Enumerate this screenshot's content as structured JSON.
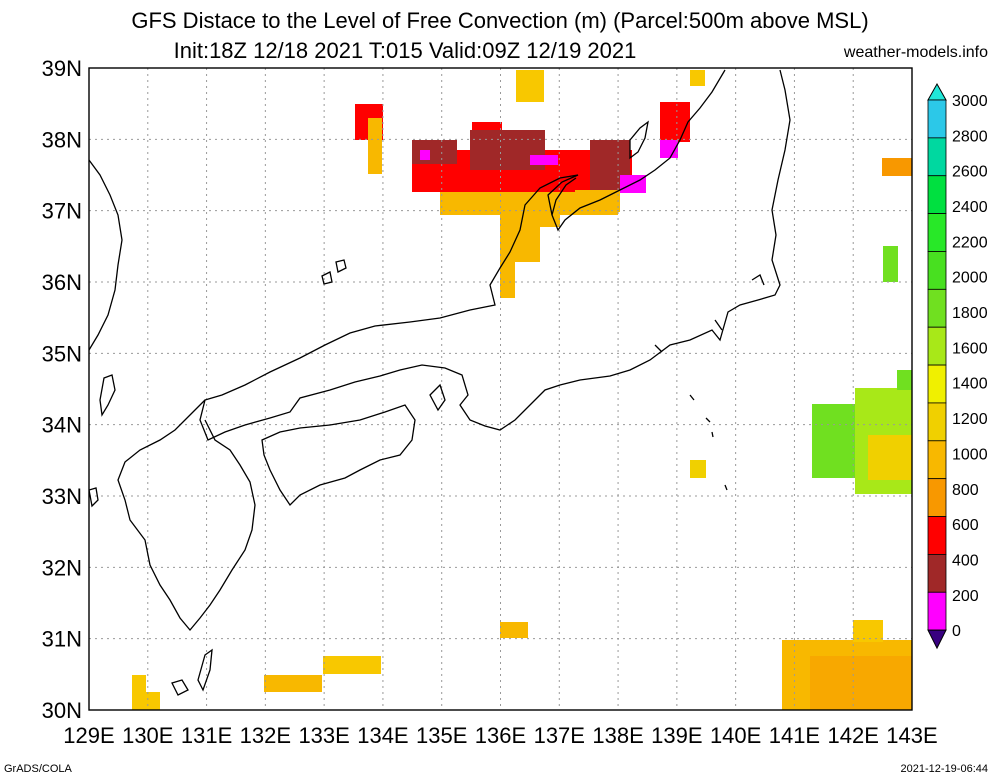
{
  "header": {
    "title": "GFS Distace to the Level of Free Convection (m) (Parcel:500m above MSL)",
    "subtitle": "Init:18Z 12/18 2021 T:015 Valid:09Z 12/19 2021",
    "site": "weather-models.info"
  },
  "footer": {
    "left": "GrADS/COLA",
    "right": "2021-12-19-06:44"
  },
  "map": {
    "lon_labels": [
      "129E",
      "130E",
      "131E",
      "132E",
      "133E",
      "134E",
      "135E",
      "136E",
      "137E",
      "138E",
      "139E",
      "140E",
      "141E",
      "142E",
      "143E"
    ],
    "lat_labels": [
      "39N",
      "38N",
      "37N",
      "36N",
      "35N",
      "34N",
      "33N",
      "32N",
      "31N",
      "30N"
    ],
    "lon_range": [
      129,
      143
    ],
    "lat_range": [
      30,
      39
    ]
  },
  "colorbar": {
    "labels": [
      "3000",
      "2800",
      "2600",
      "2400",
      "2200",
      "2000",
      "1800",
      "1600",
      "1400",
      "1200",
      "1000",
      "800",
      "600",
      "400",
      "200",
      "0"
    ],
    "colors": [
      "#20e8d8",
      "#2cc8e8",
      "#00d8a0",
      "#00e040",
      "#28e828",
      "#48e020",
      "#70e020",
      "#a8e818",
      "#f0f000",
      "#f0d000",
      "#f8b800",
      "#f89800",
      "#ff0000",
      "#a02828",
      "#ff00ff",
      "#380080"
    ]
  },
  "chart_data": {
    "type": "heatmap",
    "title": "GFS Distace to the Level of Free Convection (m) (Parcel:500m above MSL)",
    "x_range": [
      129,
      143
    ],
    "y_range": [
      30,
      39
    ],
    "cells": [
      {
        "lon": 134.0,
        "lat": 38.2,
        "value": 600
      },
      {
        "lon": 133.9,
        "lat": 37.7,
        "value": 900
      },
      {
        "lon": 136.5,
        "lat": 38.8,
        "value": 900
      },
      {
        "lon": 135.5,
        "lat": 37.6,
        "value": 400
      },
      {
        "lon": 136.5,
        "lat": 37.6,
        "value": 400
      },
      {
        "lon": 137.5,
        "lat": 37.5,
        "value": 500
      },
      {
        "lon": 136.3,
        "lat": 37.1,
        "value": 800
      },
      {
        "lon": 136.2,
        "lat": 36.1,
        "value": 900
      },
      {
        "lon": 139.0,
        "lat": 38.2,
        "value": 500
      },
      {
        "lon": 139.1,
        "lat": 38.9,
        "value": 900
      },
      {
        "lon": 142.6,
        "lat": 37.6,
        "value": 800
      },
      {
        "lon": 142.3,
        "lat": 36.3,
        "value": 1800
      },
      {
        "lon": 142.0,
        "lat": 33.8,
        "value": 1600
      },
      {
        "lon": 139.1,
        "lat": 33.4,
        "value": 1200
      },
      {
        "lon": 136.2,
        "lat": 31.1,
        "value": 900
      },
      {
        "lon": 133.3,
        "lat": 30.6,
        "value": 1100
      },
      {
        "lon": 132.5,
        "lat": 30.4,
        "value": 1000
      },
      {
        "lon": 130.0,
        "lat": 30.3,
        "value": 1100
      },
      {
        "lon": 142.0,
        "lat": 30.4,
        "value": 900
      }
    ]
  }
}
